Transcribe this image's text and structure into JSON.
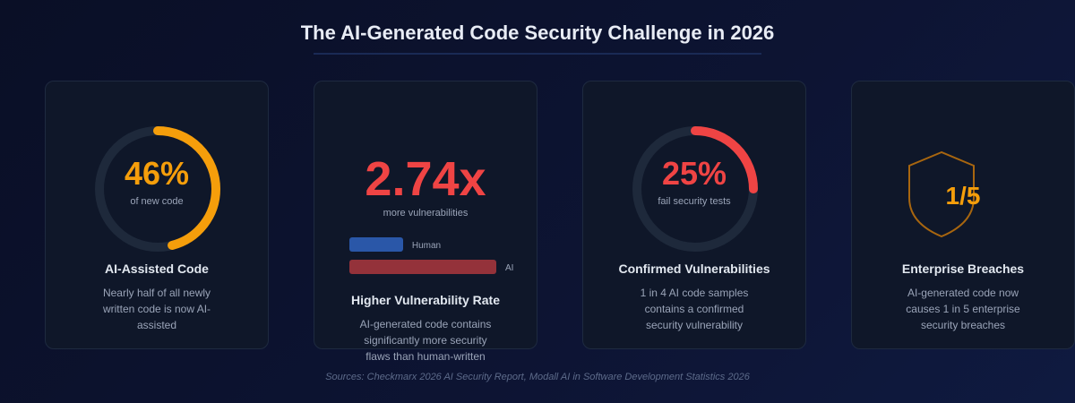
{
  "title": "The AI-Generated Code Security Challenge in 2026",
  "colors": {
    "orange": "#f59e0b",
    "red": "#ef4444",
    "blue": "#2a57a8",
    "track": "#1e293b"
  },
  "cards": [
    {
      "value": "46%",
      "percent": 46,
      "sub": "of new code",
      "heading": "AI-Assisted Code",
      "desc": "Nearly half of all newly written code is now AI-assisted",
      "icon": "progress-ring"
    },
    {
      "value": "2.74x",
      "sub": "more vulnerabilities",
      "heading": "Higher Vulnerability Rate",
      "desc": "AI-generated code contains significantly more security flaws than human-written",
      "bars": [
        {
          "label": "Human",
          "value": 1
        },
        {
          "label": "AI",
          "value": 2.74
        }
      ]
    },
    {
      "value": "25%",
      "percent": 25,
      "sub": "fail security tests",
      "heading": "Confirmed Vulnerabilities",
      "desc": "1 in 4 AI code samples contains a confirmed security vulnerability",
      "icon": "progress-ring"
    },
    {
      "value": "1/5",
      "heading": "Enterprise Breaches",
      "desc": "AI-generated code now causes 1 in 5 enterprise security breaches",
      "icon": "shield-icon"
    }
  ],
  "sources": "Sources: Checkmarx 2026 AI Security Report, Modall AI in Software Development Statistics 2026"
}
